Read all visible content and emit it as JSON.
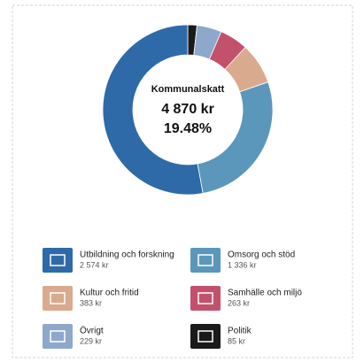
{
  "chart_data": {
    "type": "donut",
    "center_text": [
      "Kommunalskatt",
      "4 870 kr",
      "19.48%"
    ],
    "categories": [
      "Utbildning och forskning",
      "Omsorg och stöd",
      "Kultur och fritid",
      "Samhälle och miljö",
      "Övrigt",
      "Politik"
    ],
    "values": [
      2574,
      1336,
      383,
      263,
      229,
      85
    ],
    "value_labels": [
      "2 574 kr",
      "1 336 kr",
      "383 kr",
      "263 kr",
      "229 kr",
      "85 kr"
    ],
    "colors": [
      "#2f6aa8",
      "#5b97bb",
      "#d9aa8e",
      "#c2526c",
      "#8ea8cc",
      "#1a1a1a"
    ]
  }
}
